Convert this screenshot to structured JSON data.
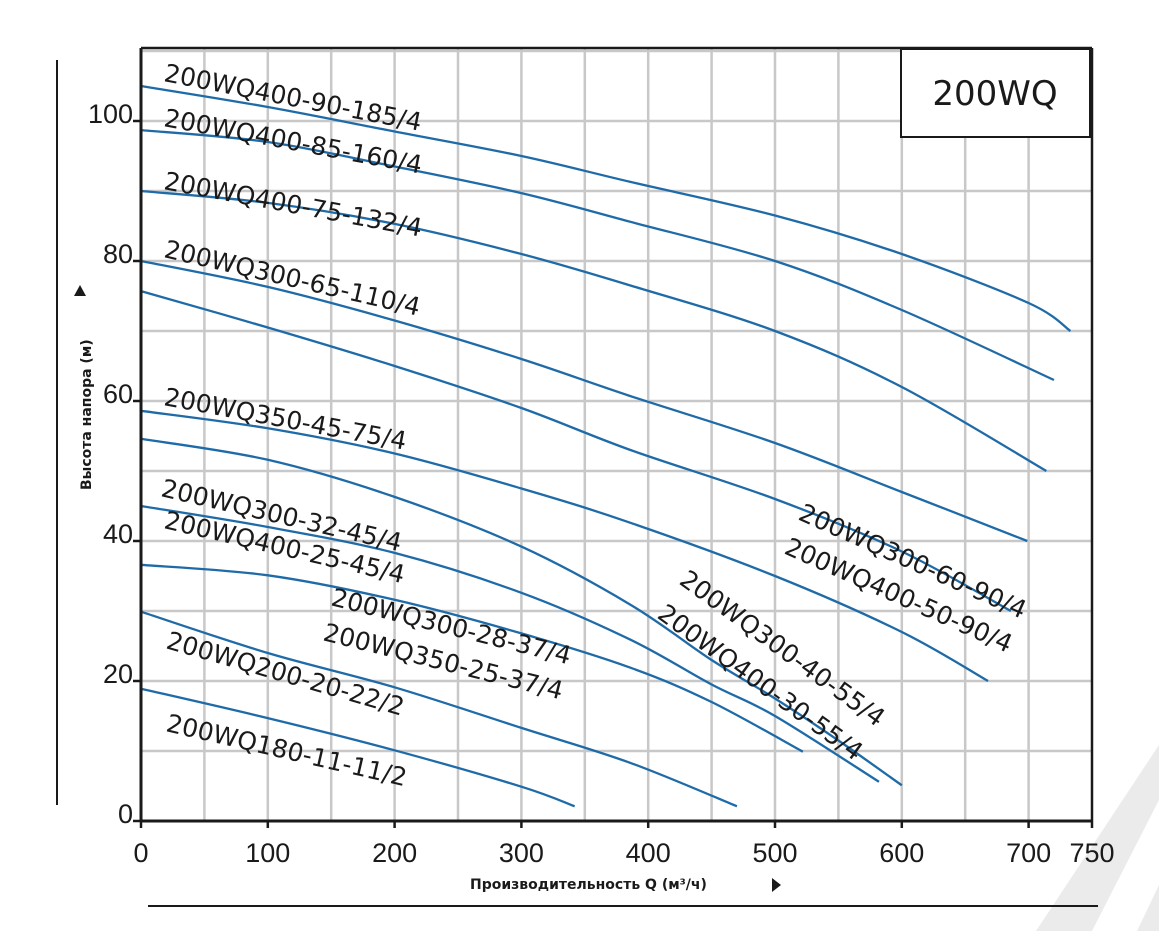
{
  "chart_data": {
    "type": "line",
    "title": "200WQ",
    "xlabel": "Производительность Q (м³/ч)",
    "ylabel": "Высота напора (м)",
    "xlim": [
      0,
      750
    ],
    "ylim": [
      0,
      110
    ],
    "x_ticks": [
      "0",
      "100",
      "200",
      "300",
      "400",
      "500",
      "600",
      "700",
      "750"
    ],
    "x_tick_values": [
      0,
      100,
      200,
      300,
      400,
      500,
      600,
      700,
      750
    ],
    "y_ticks": [
      "0",
      "20",
      "40",
      "60",
      "80",
      "100"
    ],
    "y_tick_values": [
      0,
      20,
      40,
      60,
      80,
      100
    ],
    "grid": true,
    "grid_x_step": 50,
    "grid_y_step": 10,
    "colors": {
      "curve": "#1f6ba8",
      "grid": "#c8c8c8",
      "axis": "#1a1a1a",
      "watermark": "#e8e8e8"
    },
    "series": [
      {
        "points": [
          [
            0,
            105
          ],
          [
            100,
            102
          ],
          [
            200,
            98.5
          ],
          [
            300,
            95
          ],
          [
            386,
            91.3
          ],
          [
            500,
            86.5
          ],
          [
            600,
            81
          ],
          [
            700,
            74
          ],
          [
            733,
            70
          ]
        ]
      },
      {
        "points": [
          [
            0,
            98.7
          ],
          [
            100,
            97
          ],
          [
            200,
            93.5
          ],
          [
            300,
            89.7
          ],
          [
            386,
            85.6
          ],
          [
            500,
            80
          ],
          [
            600,
            73
          ],
          [
            720,
            63
          ]
        ]
      },
      {
        "points": [
          [
            0,
            90
          ],
          [
            100,
            88.3
          ],
          [
            200,
            85.3
          ],
          [
            300,
            81
          ],
          [
            386,
            76.5
          ],
          [
            500,
            70
          ],
          [
            600,
            62
          ],
          [
            714,
            50
          ]
        ]
      },
      {
        "points": [
          [
            0,
            80
          ],
          [
            100,
            76.3
          ],
          [
            200,
            71.5
          ],
          [
            300,
            66
          ],
          [
            386,
            60.7
          ],
          [
            500,
            54
          ],
          [
            600,
            47
          ],
          [
            699,
            40
          ]
        ]
      },
      {
        "points": [
          [
            0,
            75.7
          ],
          [
            100,
            70.5
          ],
          [
            200,
            65
          ],
          [
            300,
            59
          ],
          [
            386,
            53
          ],
          [
            500,
            46
          ],
          [
            600,
            38.5
          ],
          [
            686,
            30
          ]
        ]
      },
      {
        "points": [
          [
            0,
            58.6
          ],
          [
            100,
            56.1
          ],
          [
            200,
            52.5
          ],
          [
            300,
            47.5
          ],
          [
            386,
            42.6
          ],
          [
            500,
            35
          ],
          [
            600,
            27
          ],
          [
            668,
            20
          ]
        ]
      },
      {
        "points": [
          [
            0,
            54.6
          ],
          [
            100,
            51.6
          ],
          [
            200,
            46.3
          ],
          [
            300,
            39.2
          ],
          [
            386,
            30.9
          ],
          [
            450,
            23
          ],
          [
            500,
            17.5
          ],
          [
            550,
            11.5
          ],
          [
            600,
            5.1
          ]
        ]
      },
      {
        "points": [
          [
            0,
            45
          ],
          [
            100,
            42
          ],
          [
            200,
            38.3
          ],
          [
            300,
            32.6
          ],
          [
            386,
            25.9
          ],
          [
            450,
            19.5
          ],
          [
            500,
            15
          ],
          [
            582,
            5.6
          ]
        ]
      },
      {
        "points": [
          [
            0,
            36.6
          ],
          [
            100,
            35.1
          ],
          [
            200,
            31.6
          ],
          [
            300,
            26.8
          ],
          [
            386,
            21.9
          ],
          [
            450,
            17
          ],
          [
            522,
            9.9
          ]
        ]
      },
      {
        "points": [
          [
            0,
            29.9
          ],
          [
            100,
            24
          ],
          [
            200,
            19.1
          ],
          [
            300,
            13.3
          ],
          [
            386,
            8.3
          ],
          [
            470,
            2.1
          ]
        ]
      },
      {
        "points": [
          [
            0,
            18.9
          ],
          [
            100,
            14.7
          ],
          [
            200,
            10.1
          ],
          [
            300,
            4.9
          ],
          [
            342,
            2.1
          ]
        ]
      }
    ],
    "annotations": [
      "200WQ400-90-185/4",
      "200WQ400-85-160/4",
      "200WQ400-75-132/4",
      "200WQ300-65-110/4",
      "200WQ350-45-75/4",
      "200WQ300-32-45/4",
      "200WQ400-25-45/4",
      "200WQ300-28-37/4",
      "200WQ350-25-37/4",
      "200WQ200-20-22/2",
      "200WQ180-11-11/2",
      "200WQ300-60-90/4",
      "200WQ400-50-90/4",
      "200WQ300-40-55/4",
      "200WQ400-30-55/4"
    ]
  }
}
